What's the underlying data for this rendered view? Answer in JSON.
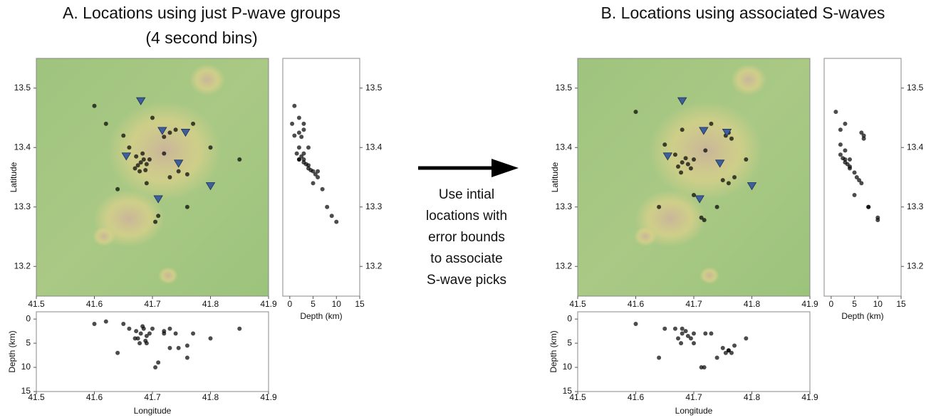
{
  "chart_data": [
    {
      "type": "scatter",
      "title": [
        "A. Locations using just P-wave groups",
        "(4 second bins)"
      ],
      "xlabel": "Longitude",
      "ylabel": "Latitude",
      "depth_label": "Depth (km)",
      "xlim": [
        41.5,
        41.9
      ],
      "ylim": [
        13.15,
        13.55
      ],
      "xticks": [
        41.5,
        41.6,
        41.7,
        41.8,
        41.9
      ],
      "yticks": [
        13.2,
        13.3,
        13.4,
        13.5
      ],
      "depth_lim": [
        -1.5,
        15
      ],
      "depth_ticks": [
        0,
        5,
        10,
        15
      ],
      "stations": {
        "color": "#3d5f9c",
        "x": [
          41.68,
          41.717,
          41.757,
          41.655,
          41.745,
          41.8,
          41.71
        ],
        "y": [
          13.478,
          13.428,
          13.425,
          13.385,
          13.373,
          13.335,
          13.313
        ]
      },
      "events": {
        "color": "#000000",
        "lon": [
          41.68,
          41.675,
          41.685,
          41.678,
          41.69,
          41.672,
          41.683,
          41.688,
          41.695,
          41.67,
          41.73,
          41.74,
          41.72,
          41.745,
          41.76,
          41.71,
          41.705,
          41.65,
          41.62,
          41.77,
          41.8,
          41.64,
          41.7,
          41.6,
          41.76,
          41.69,
          41.66,
          41.72,
          41.73,
          41.85
        ],
        "lat": [
          13.375,
          13.37,
          13.38,
          13.36,
          13.372,
          13.385,
          13.39,
          13.362,
          13.38,
          13.365,
          13.425,
          13.43,
          13.418,
          13.36,
          13.355,
          13.285,
          13.275,
          13.42,
          13.44,
          13.44,
          13.4,
          13.33,
          13.45,
          13.47,
          13.3,
          13.34,
          13.4,
          13.39,
          13.35,
          13.38
        ],
        "depth": [
          3,
          4,
          2,
          5,
          3.5,
          2.5,
          1.5,
          4.5,
          3,
          4,
          2,
          3,
          2.5,
          6,
          5.5,
          9,
          10,
          1,
          0.5,
          3,
          4,
          7,
          2,
          1,
          8,
          5,
          2,
          3,
          6,
          2
        ]
      }
    },
    {
      "type": "scatter",
      "title": [
        "B. Locations using associated S-waves"
      ],
      "xlabel": "Longitude",
      "ylabel": "Latitude",
      "depth_label": "Depth (km)",
      "xlim": [
        41.5,
        41.9
      ],
      "ylim": [
        13.15,
        13.55
      ],
      "xticks": [
        41.5,
        41.6,
        41.7,
        41.8,
        41.9
      ],
      "yticks": [
        13.2,
        13.3,
        13.4,
        13.5
      ],
      "depth_lim": [
        -1.5,
        15
      ],
      "depth_ticks": [
        0,
        5,
        10,
        15
      ],
      "stations": {
        "color": "#3d5f9c",
        "x": [
          41.68,
          41.717,
          41.757,
          41.655,
          41.745,
          41.8,
          41.71
        ],
        "y": [
          13.478,
          13.428,
          13.425,
          13.385,
          13.373,
          13.335,
          13.313
        ]
      },
      "events": {
        "color": "#000000",
        "lon": [
          41.68,
          41.673,
          41.686,
          41.678,
          41.69,
          41.668,
          41.695,
          41.7,
          41.755,
          41.76,
          41.765,
          41.75,
          41.76,
          41.77,
          41.713,
          41.718,
          41.65,
          41.64,
          41.73,
          41.6,
          41.79,
          41.72,
          41.7,
          41.68,
          41.74
        ],
        "lat": [
          13.375,
          13.368,
          13.382,
          13.358,
          13.372,
          13.388,
          13.365,
          13.38,
          13.42,
          13.425,
          13.415,
          13.345,
          13.34,
          13.35,
          13.282,
          13.278,
          13.405,
          13.3,
          13.44,
          13.46,
          13.38,
          13.395,
          13.32,
          13.43,
          13.3
        ],
        "depth": [
          3,
          4,
          2.5,
          5,
          3.5,
          2,
          4,
          3,
          7,
          6.5,
          7,
          6,
          6.5,
          5.5,
          10,
          10,
          2,
          8,
          3,
          1,
          4,
          3,
          5,
          2,
          8
        ]
      }
    }
  ],
  "annotation": [
    "Use intial",
    "locations with",
    "error bounds",
    "to associate",
    "S-wave picks"
  ]
}
